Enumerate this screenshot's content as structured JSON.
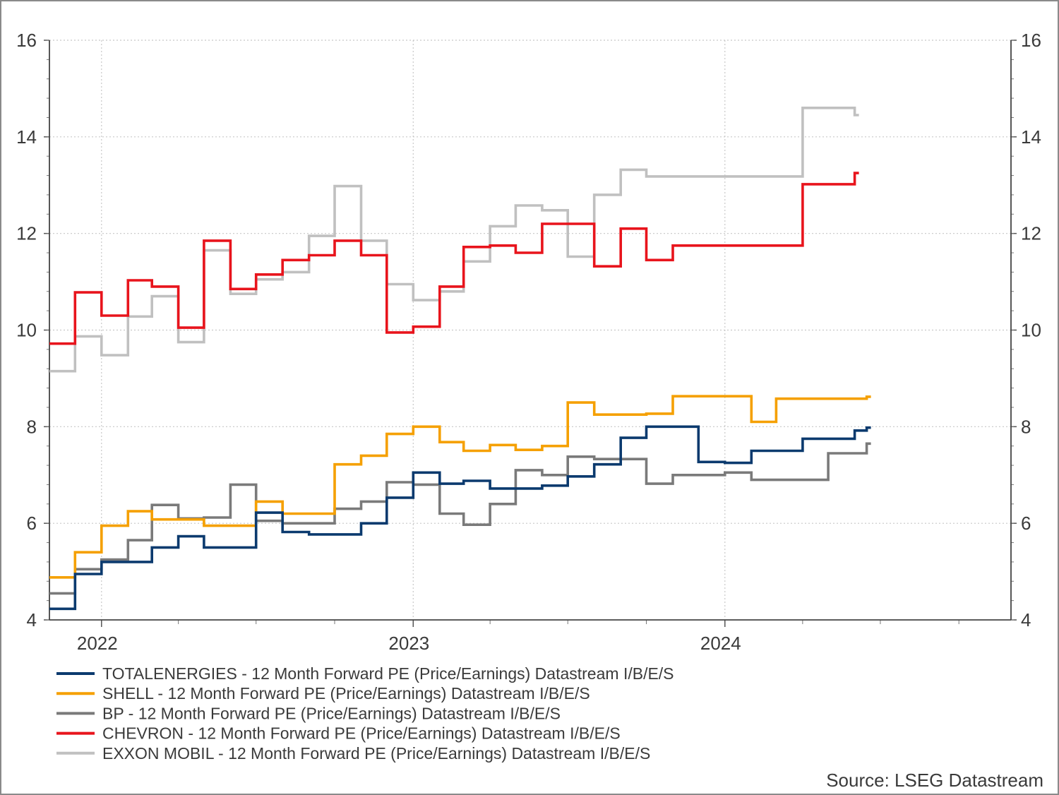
{
  "chart_data": {
    "type": "line",
    "step": true,
    "title": "",
    "xlabel": "",
    "ylabel": "",
    "ylim": [
      4,
      16
    ],
    "y_ticks": [
      "4",
      "6",
      "8",
      "10",
      "12",
      "14",
      "16"
    ],
    "x_ticks": [
      "2022",
      "2023",
      "2024"
    ],
    "x_range": [
      "2021-11-01",
      "2024-12-01"
    ],
    "grid": true,
    "dual_y_axis": true,
    "legend_position": "bottom",
    "source": "Source: LSEG Datastream",
    "series": [
      {
        "name": "TOTALENERGIES - 12 Month Forward PE (Price/Earnings) Datastream I/B/E/S",
        "color": "#0b3a6e",
        "points": [
          [
            "2021-11-01",
            4.23
          ],
          [
            "2021-12-01",
            4.95
          ],
          [
            "2022-01-01",
            5.2
          ],
          [
            "2022-03-01",
            5.5
          ],
          [
            "2022-04-01",
            5.73
          ],
          [
            "2022-05-01",
            5.5
          ],
          [
            "2022-07-01",
            6.22
          ],
          [
            "2022-08-01",
            5.82
          ],
          [
            "2022-09-01",
            5.77
          ],
          [
            "2022-11-01",
            6.0
          ],
          [
            "2022-12-01",
            6.53
          ],
          [
            "2023-01-01",
            7.05
          ],
          [
            "2023-02-01",
            6.82
          ],
          [
            "2023-03-01",
            6.88
          ],
          [
            "2023-04-01",
            6.72
          ],
          [
            "2023-06-01",
            6.78
          ],
          [
            "2023-07-01",
            6.97
          ],
          [
            "2023-08-01",
            7.22
          ],
          [
            "2023-09-01",
            7.77
          ],
          [
            "2023-10-01",
            8.0
          ],
          [
            "2023-12-01",
            7.27
          ],
          [
            "2024-01-01",
            7.25
          ],
          [
            "2024-02-01",
            7.5
          ],
          [
            "2024-04-01",
            7.75
          ],
          [
            "2024-06-01",
            7.92
          ],
          [
            "2024-06-15",
            7.98
          ]
        ]
      },
      {
        "name": "SHELL - 12 Month Forward PE (Price/Earnings) Datastream I/B/E/S",
        "color": "#f5a000",
        "points": [
          [
            "2021-11-01",
            4.88
          ],
          [
            "2021-12-01",
            5.4
          ],
          [
            "2022-01-01",
            5.95
          ],
          [
            "2022-02-01",
            6.25
          ],
          [
            "2022-03-01",
            6.08
          ],
          [
            "2022-05-01",
            5.95
          ],
          [
            "2022-07-01",
            6.45
          ],
          [
            "2022-08-01",
            6.2
          ],
          [
            "2022-10-01",
            7.22
          ],
          [
            "2022-11-01",
            7.4
          ],
          [
            "2022-12-01",
            7.85
          ],
          [
            "2023-01-01",
            8.0
          ],
          [
            "2023-02-01",
            7.68
          ],
          [
            "2023-03-01",
            7.5
          ],
          [
            "2023-04-01",
            7.62
          ],
          [
            "2023-05-01",
            7.52
          ],
          [
            "2023-06-01",
            7.6
          ],
          [
            "2023-07-01",
            8.5
          ],
          [
            "2023-08-01",
            8.25
          ],
          [
            "2023-10-01",
            8.27
          ],
          [
            "2023-11-01",
            8.63
          ],
          [
            "2024-02-01",
            8.1
          ],
          [
            "2024-03-01",
            8.58
          ],
          [
            "2024-06-15",
            8.62
          ]
        ]
      },
      {
        "name": "BP - 12 Month Forward PE (Price/Earnings) Datastream I/B/E/S",
        "color": "#7a7a7a",
        "points": [
          [
            "2021-11-01",
            4.55
          ],
          [
            "2021-12-01",
            5.05
          ],
          [
            "2022-01-01",
            5.25
          ],
          [
            "2022-02-01",
            5.65
          ],
          [
            "2022-03-01",
            6.38
          ],
          [
            "2022-04-01",
            6.1
          ],
          [
            "2022-05-01",
            6.12
          ],
          [
            "2022-06-01",
            6.8
          ],
          [
            "2022-07-01",
            6.05
          ],
          [
            "2022-08-01",
            6.0
          ],
          [
            "2022-10-01",
            6.3
          ],
          [
            "2022-11-01",
            6.45
          ],
          [
            "2022-12-01",
            6.85
          ],
          [
            "2023-01-01",
            6.8
          ],
          [
            "2023-02-01",
            6.2
          ],
          [
            "2023-03-01",
            5.97
          ],
          [
            "2023-04-01",
            6.4
          ],
          [
            "2023-05-01",
            7.1
          ],
          [
            "2023-06-01",
            7.0
          ],
          [
            "2023-07-01",
            7.38
          ],
          [
            "2023-08-01",
            7.33
          ],
          [
            "2023-10-01",
            6.82
          ],
          [
            "2023-11-01",
            7.0
          ],
          [
            "2024-01-01",
            7.05
          ],
          [
            "2024-02-01",
            6.9
          ],
          [
            "2024-05-01",
            7.45
          ],
          [
            "2024-06-15",
            7.65
          ]
        ]
      },
      {
        "name": "CHEVRON - 12 Month Forward PE (Price/Earnings) Datastream I/B/E/S",
        "color": "#e8141c",
        "points": [
          [
            "2021-11-01",
            9.72
          ],
          [
            "2021-12-01",
            10.78
          ],
          [
            "2022-01-01",
            10.3
          ],
          [
            "2022-02-01",
            11.03
          ],
          [
            "2022-03-01",
            10.9
          ],
          [
            "2022-04-01",
            10.05
          ],
          [
            "2022-05-01",
            11.85
          ],
          [
            "2022-06-01",
            10.85
          ],
          [
            "2022-07-01",
            11.15
          ],
          [
            "2022-08-01",
            11.45
          ],
          [
            "2022-09-01",
            11.55
          ],
          [
            "2022-10-01",
            11.85
          ],
          [
            "2022-11-01",
            11.55
          ],
          [
            "2022-12-01",
            9.95
          ],
          [
            "2023-01-01",
            10.07
          ],
          [
            "2023-02-01",
            10.9
          ],
          [
            "2023-03-01",
            11.72
          ],
          [
            "2023-04-01",
            11.75
          ],
          [
            "2023-05-01",
            11.6
          ],
          [
            "2023-06-01",
            12.2
          ],
          [
            "2023-08-01",
            11.32
          ],
          [
            "2023-09-01",
            12.1
          ],
          [
            "2023-10-01",
            11.45
          ],
          [
            "2023-11-01",
            11.75
          ],
          [
            "2024-04-01",
            13.02
          ],
          [
            "2024-06-01",
            13.25
          ]
        ]
      },
      {
        "name": "EXXON MOBIL - 12 Month Forward PE (Price/Earnings) Datastream I/B/E/S",
        "color": "#c0c0c0",
        "points": [
          [
            "2021-11-01",
            9.15
          ],
          [
            "2021-12-01",
            9.87
          ],
          [
            "2022-01-01",
            9.48
          ],
          [
            "2022-02-01",
            10.28
          ],
          [
            "2022-03-01",
            10.7
          ],
          [
            "2022-04-01",
            9.75
          ],
          [
            "2022-05-01",
            11.65
          ],
          [
            "2022-06-01",
            10.75
          ],
          [
            "2022-07-01",
            11.05
          ],
          [
            "2022-08-01",
            11.2
          ],
          [
            "2022-09-01",
            11.95
          ],
          [
            "2022-10-01",
            12.98
          ],
          [
            "2022-11-01",
            11.85
          ],
          [
            "2022-12-01",
            10.95
          ],
          [
            "2023-01-01",
            10.62
          ],
          [
            "2023-02-01",
            10.8
          ],
          [
            "2023-03-01",
            11.42
          ],
          [
            "2023-04-01",
            12.15
          ],
          [
            "2023-05-01",
            12.58
          ],
          [
            "2023-06-01",
            12.48
          ],
          [
            "2023-07-01",
            11.52
          ],
          [
            "2023-08-01",
            12.8
          ],
          [
            "2023-09-01",
            13.32
          ],
          [
            "2023-10-01",
            13.18
          ],
          [
            "2024-04-01",
            14.6
          ],
          [
            "2024-06-01",
            14.45
          ]
        ]
      }
    ]
  }
}
